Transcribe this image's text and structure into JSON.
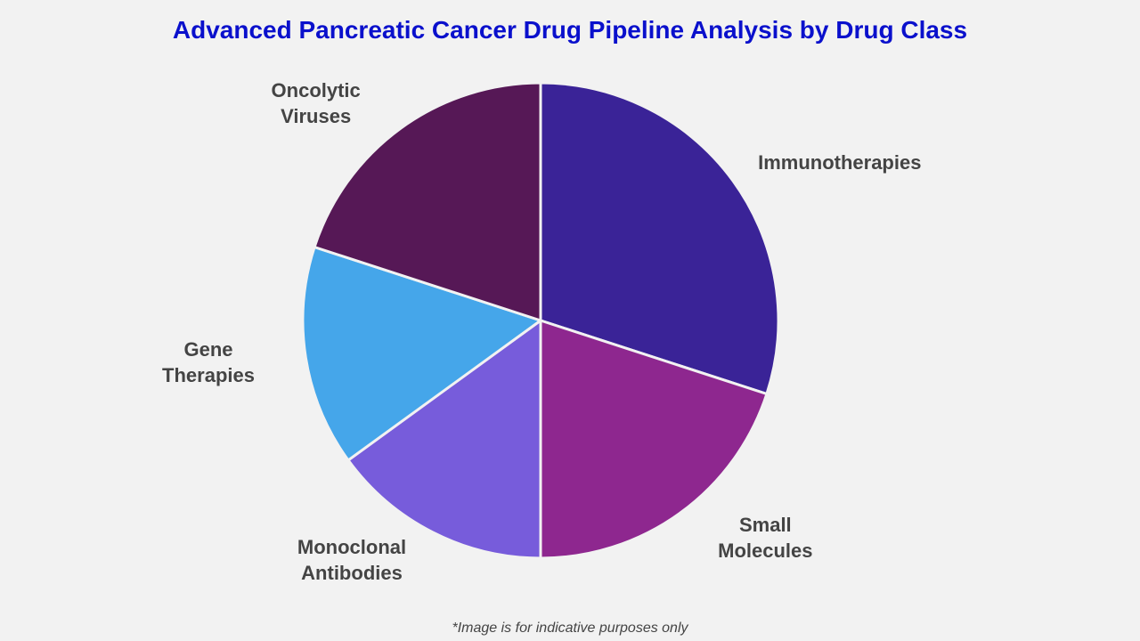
{
  "chart_data": {
    "type": "pie",
    "title": "Advanced Pancreatic Cancer Drug Pipeline Analysis by Drug Class",
    "categories": [
      "Immunotherapies",
      "Small Molecules",
      "Monoclonal Antibodies",
      "Gene Therapies",
      "Oncolytic Viruses"
    ],
    "values": [
      30,
      20,
      15,
      15,
      20
    ],
    "colors": [
      "#3a2397",
      "#8e278f",
      "#775cdb",
      "#45a6ea",
      "#561856"
    ],
    "footnote": "*Image is for indicative purposes only"
  }
}
